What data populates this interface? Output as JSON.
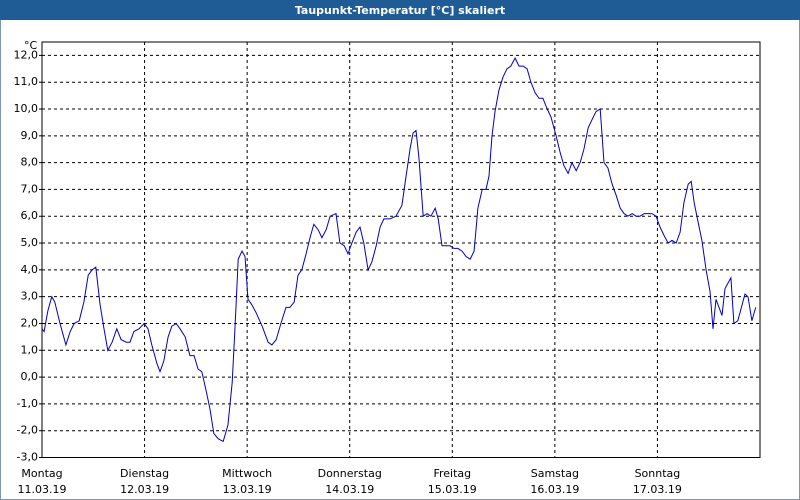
{
  "chart_data": {
    "type": "line",
    "title": "Taupunkt-Temperatur [°C] skaliert",
    "y_label": "°C",
    "xlim": [
      0,
      168
    ],
    "xticks": [
      {
        "value": 0,
        "label": "Montag"
      },
      {
        "value": 24,
        "label": "Dienstag"
      },
      {
        "value": 48,
        "label": "Mittwoch"
      },
      {
        "value": 72,
        "label": "Donnerstag"
      },
      {
        "value": 96,
        "label": "Freitag"
      },
      {
        "value": 120,
        "label": "Samstag"
      },
      {
        "value": 144,
        "label": "Sonntag"
      }
    ],
    "xtick_dates": [
      "11.03.19",
      "12.03.19",
      "13.03.19",
      "14.03.19",
      "15.03.19",
      "16.03.19",
      "17.03.19"
    ],
    "ylim": [
      -3,
      12.5
    ],
    "yticks": [
      {
        "value": 12,
        "label": "12,0"
      },
      {
        "value": 11,
        "label": "11,0"
      },
      {
        "value": 10,
        "label": "10,0"
      },
      {
        "value": 9,
        "label": "9,0"
      },
      {
        "value": 8,
        "label": "8,0"
      },
      {
        "value": 7,
        "label": "7,0"
      },
      {
        "value": 6,
        "label": "6,0"
      },
      {
        "value": 5,
        "label": "5,0"
      },
      {
        "value": 4,
        "label": "4,0"
      },
      {
        "value": 3,
        "label": "3,0"
      },
      {
        "value": 2,
        "label": "2,0"
      },
      {
        "value": 1,
        "label": "1,0"
      },
      {
        "value": 0,
        "label": "0,0"
      },
      {
        "value": -1,
        "label": "-1,0"
      },
      {
        "value": -2,
        "label": "-2,0"
      },
      {
        "value": -3,
        "label": "-3,0"
      }
    ],
    "grid": true,
    "x": [
      0,
      0.5,
      1.4,
      2.3,
      3.0,
      4.2,
      5.6,
      6.6,
      7.5,
      8.7,
      9.8,
      10.8,
      11.7,
      12.6,
      13.6,
      14.5,
      15.4,
      16.4,
      17.5,
      18.5,
      19.7,
      20.6,
      21.5,
      22.7,
      23.9,
      24.8,
      25.7,
      26.9,
      27.6,
      28.5,
      29.5,
      30.4,
      31.4,
      32.3,
      33.5,
      34.6,
      35.6,
      36.5,
      37.4,
      38.4,
      39.3,
      40.2,
      41.2,
      42.4,
      43.5,
      44.5,
      45.2,
      45.9,
      46.8,
      47.5,
      48.2,
      49.1,
      50.1,
      51.5,
      52.9,
      53.8,
      54.8,
      55.9,
      57.1,
      58.0,
      59.0,
      59.9,
      60.8,
      61.8,
      62.7,
      63.6,
      64.6,
      65.5,
      66.5,
      67.4,
      68.8,
      69.7,
      70.7,
      71.6,
      72.5,
      73.5,
      74.4,
      75.3,
      76.3,
      77.2,
      78.2,
      79.1,
      80.0,
      81.4,
      82.8,
      84.2,
      85.2,
      86.1,
      86.8,
      87.5,
      88.2,
      89.2,
      90.1,
      91.0,
      92.0,
      92.7,
      93.6,
      94.5,
      95.5,
      96.4,
      97.3,
      98.3,
      99.2,
      100.2,
      101.1,
      102.0,
      103.0,
      103.9,
      104.6,
      105.3,
      106.0,
      106.9,
      107.9,
      108.8,
      109.7,
      110.7,
      111.6,
      112.6,
      113.5,
      114.4,
      115.4,
      116.3,
      117.2,
      118.2,
      119.1,
      120.3,
      121.2,
      122.1,
      123.1,
      124.0,
      125.0,
      125.9,
      126.8,
      127.8,
      128.7,
      129.6,
      130.6,
      131.5,
      132.4,
      133.4,
      134.3,
      135.3,
      136.2,
      137.1,
      138.1,
      139.0,
      139.9,
      140.9,
      141.8,
      142.7,
      143.7,
      144.6,
      145.5,
      146.5,
      147.4,
      148.4,
      149.3,
      150.2,
      151.2,
      151.9,
      152.6,
      153.5,
      154.4,
      155.4,
      156.3,
      157.0,
      157.7,
      158.4,
      159.1,
      159.8,
      160.5,
      161.2,
      161.9,
      162.8,
      163.8,
      164.5,
      165.2,
      166.1,
      167.0
    ],
    "series": [
      {
        "name": "Taupunkt-Temperatur",
        "color": "#0000c0",
        "values": [
          1.8,
          1.7,
          2.5,
          3.0,
          2.8,
          2.0,
          1.2,
          1.7,
          2.0,
          2.1,
          2.8,
          3.8,
          4.0,
          4.1,
          2.7,
          1.8,
          1.0,
          1.3,
          1.8,
          1.4,
          1.3,
          1.3,
          1.7,
          1.8,
          2.0,
          1.8,
          1.2,
          0.5,
          0.2,
          0.6,
          1.5,
          1.9,
          2.0,
          1.8,
          1.5,
          0.8,
          0.8,
          0.3,
          0.2,
          -0.5,
          -1.2,
          -2.1,
          -2.3,
          -2.4,
          -1.8,
          -0.2,
          2.0,
          4.4,
          4.7,
          4.5,
          2.9,
          2.7,
          2.4,
          1.9,
          1.3,
          1.2,
          1.4,
          2.0,
          2.6,
          2.6,
          2.8,
          3.8,
          4.0,
          4.6,
          5.2,
          5.7,
          5.5,
          5.2,
          5.5,
          6.0,
          6.1,
          5.0,
          4.9,
          4.6,
          5.0,
          5.4,
          5.6,
          5.0,
          4.0,
          4.3,
          4.9,
          5.6,
          5.9,
          5.9,
          6.0,
          6.4,
          7.5,
          8.5,
          9.1,
          9.2,
          8.2,
          6.0,
          6.1,
          6.0,
          6.3,
          5.9,
          4.9,
          4.9,
          4.9,
          4.8,
          4.8,
          4.7,
          4.5,
          4.4,
          4.7,
          6.3,
          7.0,
          7.0,
          7.5,
          9.0,
          9.9,
          10.7,
          11.2,
          11.5,
          11.6,
          11.9,
          11.6,
          11.6,
          11.5,
          11.0,
          10.6,
          10.4,
          10.4,
          10.0,
          9.7,
          9.0,
          8.4,
          7.9,
          7.6,
          8.0,
          7.7,
          8.0,
          8.5,
          9.3,
          9.6,
          9.9,
          10.0,
          8.0,
          7.8,
          7.2,
          6.8,
          6.3,
          6.1,
          6.0,
          6.1,
          6.0,
          6.0,
          6.1,
          6.1,
          6.1,
          6.0,
          5.6,
          5.3,
          5.0,
          5.1,
          5.0,
          5.4,
          6.5,
          7.2,
          7.3,
          6.5,
          5.8,
          5.1,
          4.0,
          3.2,
          1.8,
          2.9,
          2.6,
          2.3,
          3.3,
          3.5,
          3.7,
          2.0,
          2.1,
          2.7,
          3.1,
          3.0,
          2.1,
          2.6
        ]
      }
    ]
  }
}
